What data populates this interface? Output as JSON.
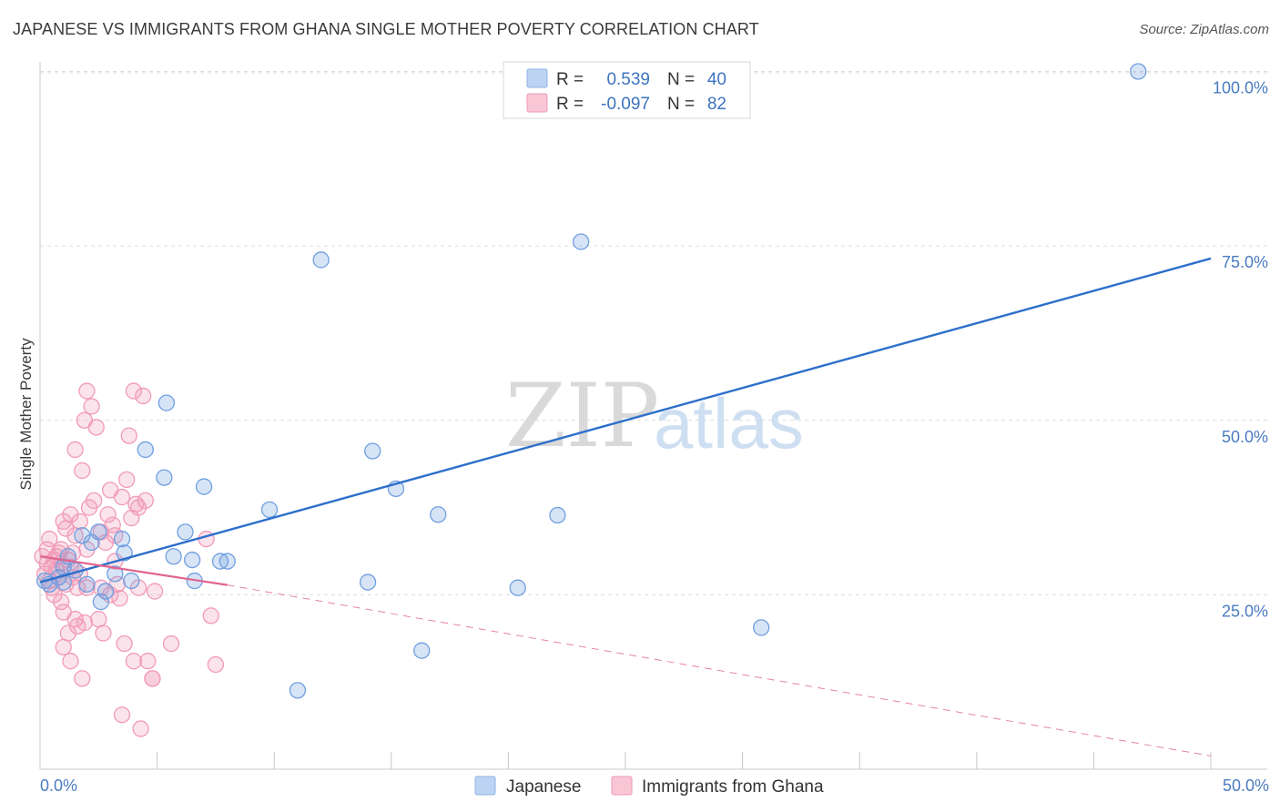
{
  "title": "JAPANESE VS IMMIGRANTS FROM GHANA SINGLE MOTHER POVERTY CORRELATION CHART",
  "source": "Source: ZipAtlas.com",
  "watermark": {
    "zip": "ZIP",
    "atlas": "atlas"
  },
  "colors": {
    "japanese": "#6f9fe0",
    "japanese_line": "#2e6fcc",
    "ghana": "#f19ab7",
    "ghana_line": "#e0648f",
    "grid": "#dcdcdc",
    "tick": "#4a7cc0"
  },
  "legend": {
    "rows": [
      {
        "r_label": "R =",
        "r_value": "0.539",
        "n_label": "N =",
        "n_value": "40"
      },
      {
        "r_label": "R =",
        "r_value": "-0.097",
        "n_label": "N =",
        "n_value": "82"
      }
    ]
  },
  "chart_data": {
    "type": "scatter",
    "title": "JAPANESE VS IMMIGRANTS FROM GHANA SINGLE MOTHER POVERTY CORRELATION CHART",
    "xlabel": "",
    "ylabel": "Single Mother Poverty",
    "xlim": [
      0,
      50
    ],
    "ylim": [
      0,
      102
    ],
    "x_tick_labels": [
      "0.0%",
      "50.0%"
    ],
    "y_ticks": [
      25,
      50,
      75,
      100
    ],
    "y_tick_labels": [
      "25.0%",
      "50.0%",
      "75.0%",
      "100.0%"
    ],
    "grid": true,
    "legend_position": "top-center",
    "series": [
      {
        "name": "Japanese",
        "r": 0.539,
        "n": 40,
        "trend": {
          "x": [
            0,
            50
          ],
          "y": [
            26.8,
            73.2
          ],
          "dashed_extension": false
        },
        "points": [
          [
            0.2,
            27.0
          ],
          [
            0.4,
            26.5
          ],
          [
            0.8,
            27.5
          ],
          [
            1.0,
            26.8
          ],
          [
            1.2,
            30.5
          ],
          [
            1.5,
            28.5
          ],
          [
            1.8,
            33.5
          ],
          [
            2.0,
            26.5
          ],
          [
            2.2,
            32.5
          ],
          [
            2.5,
            34.0
          ],
          [
            2.6,
            24.0
          ],
          [
            2.8,
            25.5
          ],
          [
            3.2,
            28.0
          ],
          [
            3.5,
            33.0
          ],
          [
            3.6,
            31.0
          ],
          [
            3.9,
            27.0
          ],
          [
            4.5,
            45.8
          ],
          [
            5.3,
            41.8
          ],
          [
            5.4,
            52.5
          ],
          [
            5.7,
            30.5
          ],
          [
            6.2,
            34.0
          ],
          [
            6.5,
            30.0
          ],
          [
            6.6,
            27.0
          ],
          [
            7.0,
            40.5
          ],
          [
            7.7,
            29.8
          ],
          [
            8.0,
            29.8
          ],
          [
            9.8,
            37.2
          ],
          [
            11.0,
            11.3
          ],
          [
            12.0,
            73.0
          ],
          [
            14.0,
            26.8
          ],
          [
            14.2,
            45.6
          ],
          [
            15.2,
            40.2
          ],
          [
            16.3,
            17.0
          ],
          [
            17.0,
            36.5
          ],
          [
            20.4,
            26.0
          ],
          [
            22.1,
            36.4
          ],
          [
            23.1,
            75.6
          ],
          [
            30.8,
            20.3
          ],
          [
            46.9,
            100.0
          ],
          [
            1.0,
            29.0
          ]
        ]
      },
      {
        "name": "Immigrants from Ghana",
        "r": -0.097,
        "n": 82,
        "trend": {
          "x": [
            0,
            8
          ],
          "y": [
            30.5,
            26.4
          ],
          "extension_x": [
            8,
            50
          ],
          "extension_y": [
            26.4,
            1.9
          ]
        },
        "points": [
          [
            0.1,
            30.5
          ],
          [
            0.2,
            28.0
          ],
          [
            0.3,
            29.5
          ],
          [
            0.3,
            31.5
          ],
          [
            0.4,
            27.0
          ],
          [
            0.4,
            33.0
          ],
          [
            0.5,
            26.0
          ],
          [
            0.5,
            29.0
          ],
          [
            0.6,
            30.0
          ],
          [
            0.6,
            25.0
          ],
          [
            0.7,
            28.5
          ],
          [
            0.8,
            31.0
          ],
          [
            0.8,
            27.5
          ],
          [
            0.9,
            24.0
          ],
          [
            0.9,
            29.5
          ],
          [
            1.0,
            35.5
          ],
          [
            1.0,
            22.5
          ],
          [
            1.0,
            17.5
          ],
          [
            1.1,
            26.5
          ],
          [
            1.1,
            34.5
          ],
          [
            1.2,
            19.5
          ],
          [
            1.2,
            30.0
          ],
          [
            1.3,
            36.5
          ],
          [
            1.3,
            15.5
          ],
          [
            1.4,
            27.5
          ],
          [
            1.4,
            31.0
          ],
          [
            1.5,
            21.5
          ],
          [
            1.5,
            33.5
          ],
          [
            1.5,
            45.8
          ],
          [
            1.6,
            20.5
          ],
          [
            1.6,
            26.0
          ],
          [
            1.7,
            28.0
          ],
          [
            1.7,
            35.5
          ],
          [
            1.8,
            42.8
          ],
          [
            1.8,
            13.0
          ],
          [
            1.9,
            50.0
          ],
          [
            1.9,
            21.0
          ],
          [
            2.0,
            54.2
          ],
          [
            2.0,
            31.5
          ],
          [
            2.0,
            26.0
          ],
          [
            2.1,
            37.5
          ],
          [
            2.2,
            52.0
          ],
          [
            2.3,
            38.5
          ],
          [
            2.4,
            49.0
          ],
          [
            2.5,
            21.5
          ],
          [
            2.6,
            26.0
          ],
          [
            2.7,
            19.5
          ],
          [
            2.8,
            32.5
          ],
          [
            2.9,
            36.5
          ],
          [
            3.0,
            40.0
          ],
          [
            3.0,
            25.0
          ],
          [
            3.1,
            35.0
          ],
          [
            3.2,
            33.5
          ],
          [
            3.3,
            26.5
          ],
          [
            3.4,
            24.5
          ],
          [
            3.5,
            39.0
          ],
          [
            3.5,
            7.8
          ],
          [
            3.6,
            18.0
          ],
          [
            3.7,
            41.5
          ],
          [
            3.8,
            47.8
          ],
          [
            3.9,
            36.0
          ],
          [
            4.0,
            54.2
          ],
          [
            4.0,
            15.5
          ],
          [
            4.1,
            38.0
          ],
          [
            4.2,
            37.5
          ],
          [
            4.3,
            5.8
          ],
          [
            4.4,
            53.5
          ],
          [
            4.5,
            38.5
          ],
          [
            4.6,
            15.5
          ],
          [
            4.8,
            13.0
          ],
          [
            4.8,
            13.0
          ],
          [
            4.9,
            25.5
          ],
          [
            5.6,
            18.0
          ],
          [
            7.1,
            33.0
          ],
          [
            7.3,
            22.0
          ],
          [
            7.5,
            15.0
          ],
          [
            4.2,
            26.0
          ],
          [
            2.6,
            34.0
          ],
          [
            0.7,
            30.5
          ],
          [
            1.3,
            29.0
          ],
          [
            3.2,
            29.8
          ],
          [
            0.9,
            31.5
          ]
        ]
      }
    ]
  },
  "bottom_legend": {
    "items": [
      {
        "label": "Japanese"
      },
      {
        "label": "Immigrants from Ghana"
      }
    ]
  },
  "axis": {
    "ylabel": "Single Mother Poverty",
    "x_left": "0.0%",
    "x_right": "50.0%"
  }
}
